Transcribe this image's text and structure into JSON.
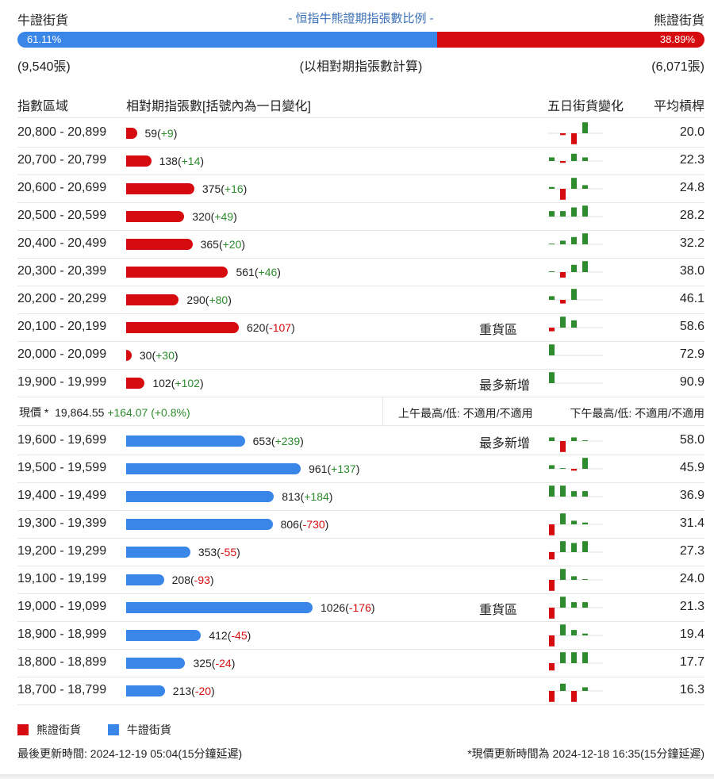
{
  "header": {
    "bull_label": "牛證街貨",
    "title": "- 恒指牛熊證期指張數比例 -",
    "bear_label": "熊證街貨"
  },
  "ratio": {
    "bull_pct": "61.11%",
    "bear_pct": "38.89%",
    "bull_fraction": 0.6111
  },
  "counts": {
    "bull": "(9,540張)",
    "note": "(以相對期指張數計算)",
    "bear": "(6,071張)"
  },
  "columns": {
    "range": "指數區域",
    "contracts": "相對期指張數[括號內為一日變化]",
    "five_day": "五日街貨變化",
    "avg": "平均槓桿"
  },
  "colors": {
    "bear": "#d50b0f",
    "bull": "#3a86e8",
    "up": "#2e8b2e"
  },
  "bear_rows": [
    {
      "range": "20,800 - 20,899",
      "value": 59,
      "count": "59",
      "change": "+9",
      "tag": "",
      "avg": "20.0",
      "spark": [
        0,
        -0.5,
        -3,
        3
      ]
    },
    {
      "range": "20,700 - 20,799",
      "value": 138,
      "count": "138",
      "change": "+14",
      "tag": "",
      "avg": "22.3",
      "spark": [
        1,
        -0.5,
        2,
        1
      ]
    },
    {
      "range": "20,600 - 20,699",
      "value": 375,
      "count": "375",
      "change": "+16",
      "tag": "",
      "avg": "24.8",
      "spark": [
        0.5,
        -3,
        3,
        1
      ]
    },
    {
      "range": "20,500 - 20,599",
      "value": 320,
      "count": "320",
      "change": "+49",
      "tag": "",
      "avg": "28.2",
      "spark": [
        1.5,
        1.5,
        2.5,
        3
      ]
    },
    {
      "range": "20,400 - 20,499",
      "value": 365,
      "count": "365",
      "change": "+20",
      "tag": "",
      "avg": "32.2",
      "spark": [
        0.2,
        1,
        2,
        3
      ]
    },
    {
      "range": "20,300 - 20,399",
      "value": 561,
      "count": "561",
      "change": "+46",
      "tag": "",
      "avg": "38.0",
      "spark": [
        0.2,
        -1.5,
        2,
        3
      ]
    },
    {
      "range": "20,200 - 20,299",
      "value": 290,
      "count": "290",
      "change": "+80",
      "tag": "",
      "avg": "46.1",
      "spark": [
        1,
        -1,
        3,
        0
      ]
    },
    {
      "range": "20,100 - 20,199",
      "value": 620,
      "count": "620",
      "change": "-107",
      "tag": "重貨區",
      "avg": "58.6",
      "spark": [
        -1,
        3,
        2,
        0
      ]
    },
    {
      "range": "20,000 - 20,099",
      "value": 30,
      "count": "30",
      "change": "+30",
      "tag": "",
      "avg": "72.9",
      "spark": [
        3,
        0,
        0,
        0
      ]
    },
    {
      "range": "19,900 - 19,999",
      "value": 102,
      "count": "102",
      "change": "+102",
      "tag": "最多新增",
      "avg": "90.9",
      "spark": [
        3,
        0,
        0,
        0
      ]
    }
  ],
  "price": {
    "label": "現價 *",
    "value": "19,864.55",
    "change": "+164.07 (+0.8%)",
    "am": "上午最高/低: 不適用/不適用",
    "pm": "下午最高/低: 不適用/不適用"
  },
  "bull_rows": [
    {
      "range": "19,600 - 19,699",
      "value": 653,
      "count": "653",
      "change": "+239",
      "tag": "最多新增",
      "avg": "58.0",
      "spark": [
        1,
        -3,
        1,
        0.2
      ]
    },
    {
      "range": "19,500 - 19,599",
      "value": 961,
      "count": "961",
      "change": "+137",
      "tag": "",
      "avg": "45.9",
      "spark": [
        1,
        0.2,
        -0.5,
        3
      ]
    },
    {
      "range": "19,400 - 19,499",
      "value": 813,
      "count": "813",
      "change": "+184",
      "tag": "",
      "avg": "36.9",
      "spark": [
        3,
        3,
        1.5,
        1.5
      ]
    },
    {
      "range": "19,300 - 19,399",
      "value": 806,
      "count": "806",
      "change": "-730",
      "tag": "",
      "avg": "31.4",
      "spark": [
        -3,
        3,
        1,
        0.5
      ]
    },
    {
      "range": "19,200 - 19,299",
      "value": 353,
      "count": "353",
      "change": "-55",
      "tag": "",
      "avg": "27.3",
      "spark": [
        -2,
        3,
        2.5,
        3
      ]
    },
    {
      "range": "19,100 - 19,199",
      "value": 208,
      "count": "208",
      "change": "-93",
      "tag": "",
      "avg": "24.0",
      "spark": [
        -3,
        3,
        1,
        0.2
      ]
    },
    {
      "range": "19,000 - 19,099",
      "value": 1026,
      "count": "1026",
      "change": "-176",
      "tag": "重貨區",
      "avg": "21.3",
      "spark": [
        -3,
        3,
        1.5,
        1.5
      ]
    },
    {
      "range": "18,900 - 18,999",
      "value": 412,
      "count": "412",
      "change": "-45",
      "tag": "",
      "avg": "19.4",
      "spark": [
        -3,
        3,
        1.5,
        0.5
      ]
    },
    {
      "range": "18,800 - 18,899",
      "value": 325,
      "count": "325",
      "change": "-24",
      "tag": "",
      "avg": "17.7",
      "spark": [
        -2,
        3,
        3,
        3
      ]
    },
    {
      "range": "18,700 - 18,799",
      "value": 213,
      "count": "213",
      "change": "-20",
      "tag": "",
      "avg": "16.3",
      "spark": [
        -3,
        2,
        -3,
        1
      ]
    }
  ],
  "legend": {
    "bear": "熊證街貨",
    "bull": "牛證街貨"
  },
  "footer": {
    "updated": "最後更新時間: 2024-12-19 05:04(15分鐘延遲)",
    "price_updated": "*現價更新時間為 2024-12-18 16:35(15分鐘延遲)"
  }
}
